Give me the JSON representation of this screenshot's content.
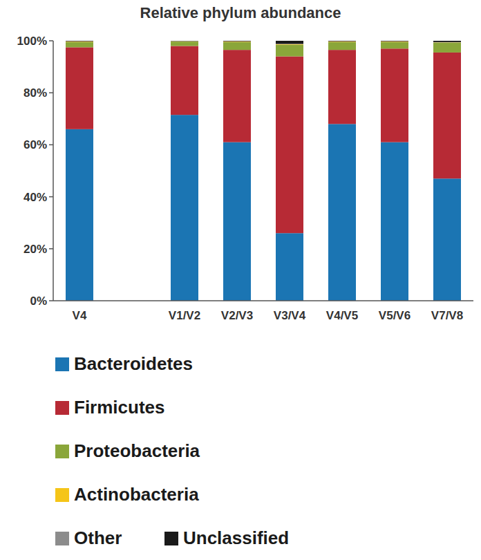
{
  "chart_data": {
    "type": "bar",
    "title": "Relative phylum abundance",
    "stacked": true,
    "grid": false,
    "legend": "bottom",
    "categories": [
      "V4",
      null,
      "V1/V2",
      "V2/V3",
      "V3/V4",
      "V4/V5",
      "V5/V6",
      "V7/V8"
    ],
    "ylim": [
      0,
      100
    ],
    "yticks": [
      {
        "value": 0,
        "label": "0%"
      },
      {
        "value": 20,
        "label": "20%"
      },
      {
        "value": 40,
        "label": "40%"
      },
      {
        "value": 60,
        "label": "60%"
      },
      {
        "value": 80,
        "label": "80%"
      },
      {
        "value": 100,
        "label": "100%"
      }
    ],
    "series": [
      {
        "name": "Bacteroidetes",
        "color": "#1b75b3",
        "values": [
          66,
          null,
          71.5,
          61,
          26,
          68,
          61,
          47
        ]
      },
      {
        "name": "Firmicutes",
        "color": "#b72a35",
        "values": [
          31.5,
          null,
          26.5,
          35.5,
          68,
          28.5,
          36,
          48.5
        ]
      },
      {
        "name": "Proteobacteria",
        "color": "#8aa63a",
        "values": [
          2,
          null,
          1.7,
          3,
          4.5,
          3,
          2.5,
          3.8
        ]
      },
      {
        "name": "Actinobacteria",
        "color": "#f5c518",
        "values": [
          0.2,
          null,
          0.1,
          0.2,
          0.2,
          0.2,
          0.2,
          0.1
        ]
      },
      {
        "name": "Other",
        "color": "#8c8c8c",
        "values": [
          0.1,
          null,
          0.1,
          0.1,
          0.1,
          0.1,
          0.1,
          0.1
        ]
      },
      {
        "name": "Unclassified",
        "color": "#1a1a1a",
        "values": [
          0.2,
          null,
          0.1,
          0.2,
          1.2,
          0.2,
          0.2,
          0.5
        ]
      }
    ]
  }
}
